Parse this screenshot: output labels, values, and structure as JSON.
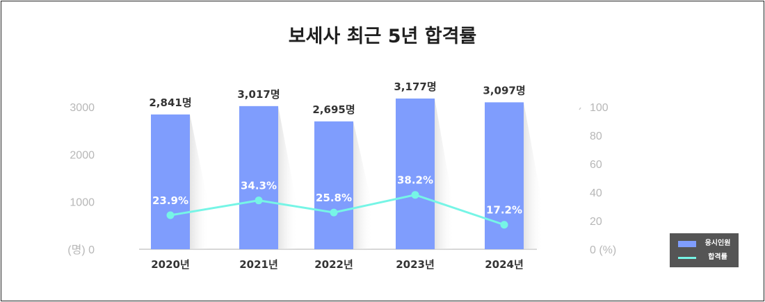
{
  "title": "보세사 최근 5년 합격률",
  "chart_data": {
    "type": "bar",
    "title": "보세사 최근 5년 합격률",
    "categories": [
      "2020년",
      "2021년",
      "2022년",
      "2023년",
      "2024년"
    ],
    "series": [
      {
        "name": "응시인원",
        "kind": "bar",
        "axis": "left",
        "color": "#7f9dfd",
        "values": [
          2841,
          3017,
          2695,
          3177,
          3097
        ],
        "labels": [
          "2,841명",
          "3,017명",
          "2,695명",
          "3,177명",
          "3,097명"
        ]
      },
      {
        "name": "합격률",
        "kind": "line",
        "axis": "right",
        "color": "#76f5e6",
        "values": [
          23.9,
          34.3,
          25.8,
          38.2,
          17.2
        ],
        "labels": [
          "23.9%",
          "34.3%",
          "25.8%",
          "38.2%",
          "17.2%"
        ]
      }
    ],
    "y_left": {
      "range": [
        0,
        3000
      ],
      "ticks": [
        0,
        1000,
        2000,
        3000
      ],
      "tick_labels": [
        "(명) 0",
        "1000",
        "2000",
        "3000"
      ]
    },
    "y_right": {
      "range": [
        0,
        100
      ],
      "ticks": [
        0,
        20,
        40,
        60,
        80,
        100
      ],
      "tick_labels": [
        "0 (%)",
        "20",
        "40",
        "60",
        "80",
        "100"
      ]
    },
    "grid": false,
    "legend": "bottom-right"
  },
  "legend": {
    "items": [
      {
        "label": "응시인원",
        "color": "#7f9dfd"
      },
      {
        "label": "합격률",
        "color": "#76f5e6"
      }
    ]
  }
}
